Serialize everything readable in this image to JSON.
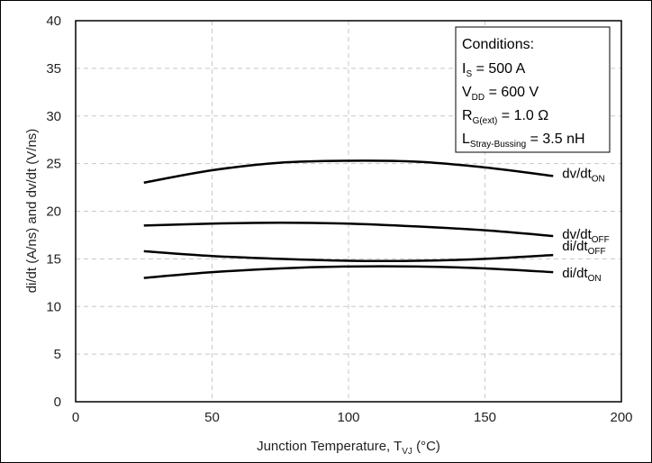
{
  "chart_data": {
    "type": "line",
    "title": "",
    "xlabel": {
      "main": "Junction Temperature, T",
      "sub": "VJ",
      "tail": " (°C)"
    },
    "ylabel": "di/dt (A/ns) and dv/dt (V/ns)",
    "xlim": [
      0,
      200
    ],
    "ylim": [
      0,
      40
    ],
    "xticks": [
      0,
      50,
      100,
      150,
      200
    ],
    "yticks": [
      0,
      5,
      10,
      15,
      20,
      25,
      30,
      35,
      40
    ],
    "grid": true,
    "series": [
      {
        "name": "dv/dt",
        "sub": "ON",
        "color": "#000000",
        "x": [
          25,
          50,
          75,
          100,
          125,
          150,
          175
        ],
        "y": [
          23.0,
          24.3,
          25.1,
          25.3,
          25.2,
          24.6,
          23.7
        ]
      },
      {
        "name": "dv/dt",
        "sub": "OFF",
        "color": "#000000",
        "x": [
          25,
          50,
          75,
          100,
          125,
          150,
          175
        ],
        "y": [
          18.5,
          18.7,
          18.8,
          18.7,
          18.4,
          18.0,
          17.4
        ]
      },
      {
        "name": "di/dt",
        "sub": "OFF",
        "color": "#000000",
        "x": [
          25,
          50,
          75,
          100,
          125,
          150,
          175
        ],
        "y": [
          15.8,
          15.3,
          15.0,
          14.8,
          14.8,
          15.0,
          15.4
        ]
      },
      {
        "name": "di/dt",
        "sub": "ON",
        "color": "#000000",
        "x": [
          25,
          50,
          75,
          100,
          125,
          150,
          175
        ],
        "y": [
          13.0,
          13.6,
          14.0,
          14.2,
          14.2,
          14.0,
          13.6
        ]
      }
    ],
    "conditions": {
      "header": "Conditions:",
      "lines": [
        {
          "main": "I",
          "sub": "S",
          "value": " = 500 A"
        },
        {
          "main": "V",
          "sub": "DD",
          "value": " = 600 V"
        },
        {
          "main": "R",
          "sub": "G(ext)",
          "value": " = 1.0 Ω"
        },
        {
          "main": "L",
          "sub": "Stray-Bussing",
          "value": " = 3.5 nH"
        }
      ]
    }
  }
}
